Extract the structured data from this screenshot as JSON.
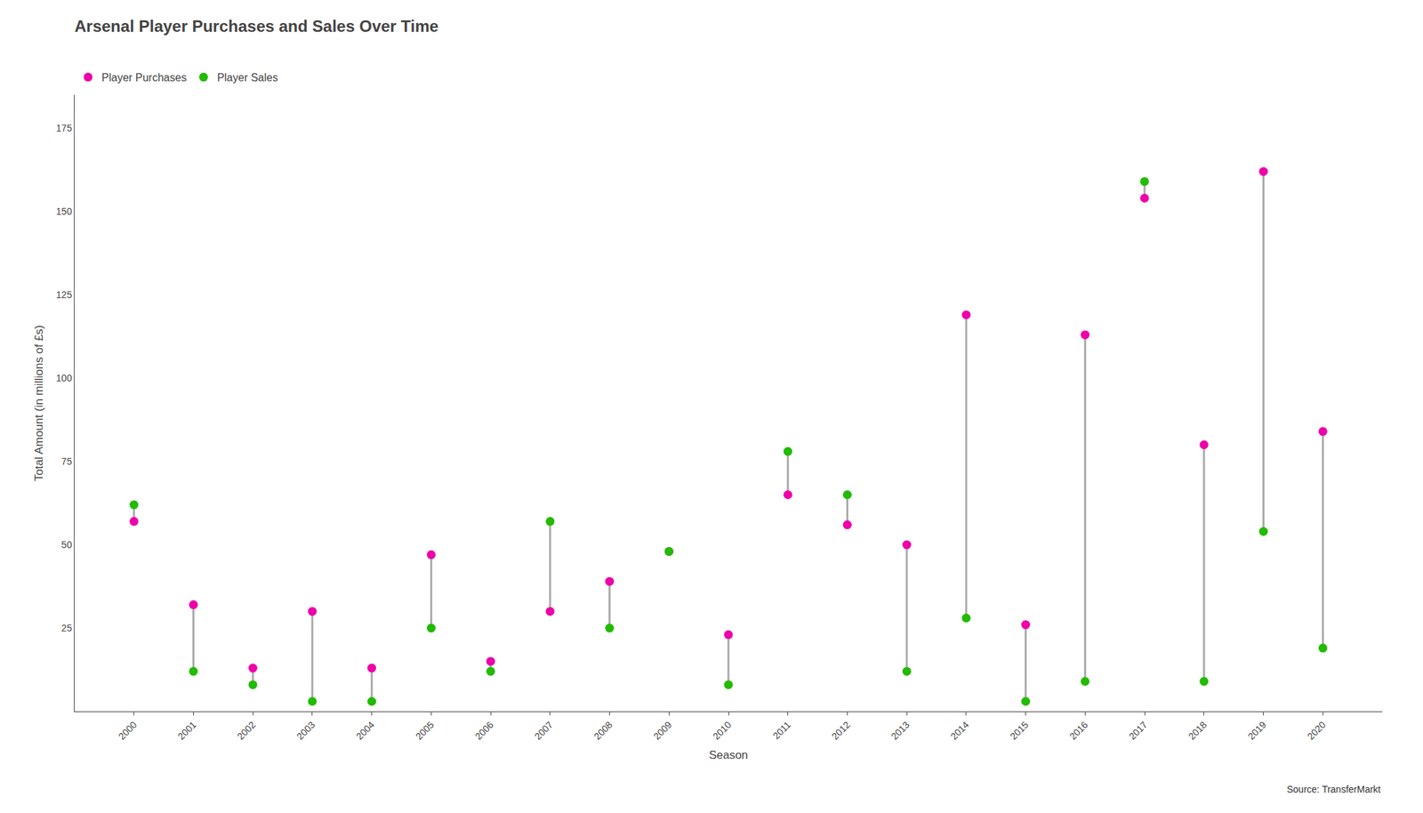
{
  "chart_data": {
    "type": "dumbbell",
    "title": "Arsenal Player Purchases and Sales Over Time",
    "x_label": "Season",
    "y_label": "Total Amount (in millions of £s)",
    "x": [
      2000,
      2001,
      2002,
      2003,
      2004,
      2005,
      2006,
      2007,
      2008,
      2009,
      2010,
      2011,
      2012,
      2013,
      2014,
      2015,
      2016,
      2017,
      2018,
      2019,
      2020
    ],
    "series": [
      {
        "name": "Player Purchases",
        "color": "#EE00AA",
        "marker": "circle",
        "values": [
          57,
          32,
          13,
          30,
          13,
          47,
          15,
          30,
          39,
          48,
          23,
          65,
          56,
          50,
          119,
          26,
          113,
          154,
          80,
          162,
          84
        ]
      },
      {
        "name": "Player Sales",
        "color": "#22BB00",
        "marker": "circle",
        "values": [
          62,
          12,
          8,
          3,
          3,
          25,
          12,
          57,
          25,
          48,
          8,
          78,
          65,
          12,
          28,
          3,
          9,
          159,
          9,
          54,
          19
        ]
      }
    ],
    "xlim": [
      1999,
      2021
    ],
    "xticks": [
      2000,
      2001,
      2002,
      2003,
      2004,
      2005,
      2006,
      2007,
      2008,
      2009,
      2010,
      2011,
      2012,
      2013,
      2014,
      2015,
      2016,
      2017,
      2018,
      2019,
      2020
    ],
    "ylim": [
      0,
      185
    ],
    "yticks": [
      25,
      50,
      75,
      100,
      125,
      150,
      175
    ],
    "grid": false,
    "legend": "upper left",
    "annotations": [
      {
        "text": "Source: TransferMarkt"
      }
    ]
  }
}
